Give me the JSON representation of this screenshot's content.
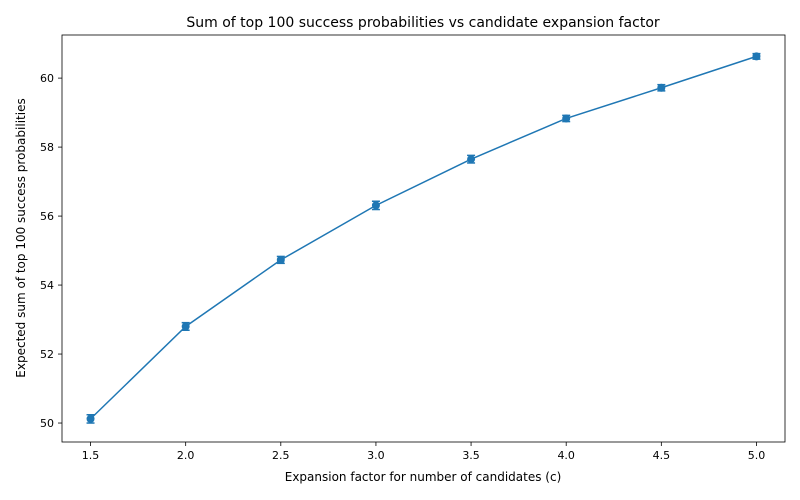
{
  "chart_data": {
    "type": "line",
    "title": "Sum of top 100 success probabilities vs candidate expansion factor",
    "xlabel": "Expansion factor for number of candidates (c)",
    "ylabel": "Expected sum of top 100 success probabilities",
    "xlim": [
      1.35,
      5.15
    ],
    "ylim": [
      49.45,
      61.25
    ],
    "xticks": [
      1.5,
      2.0,
      2.5,
      3.0,
      3.5,
      4.0,
      4.5,
      5.0
    ],
    "xtick_labels": [
      "1.5",
      "2.0",
      "2.5",
      "3.0",
      "3.5",
      "4.0",
      "4.5",
      "5.0"
    ],
    "yticks": [
      50,
      52,
      54,
      56,
      58,
      60
    ],
    "ytick_labels": [
      "50",
      "52",
      "54",
      "56",
      "58",
      "60"
    ],
    "grid": false,
    "series": [
      {
        "color": "#1f77b4",
        "x": [
          1.5,
          2.0,
          2.5,
          3.0,
          3.5,
          4.0,
          4.5,
          5.0
        ],
        "y": [
          50.12,
          52.8,
          54.73,
          56.31,
          57.65,
          58.83,
          59.72,
          60.63
        ],
        "yerr": [
          0.12,
          0.11,
          0.1,
          0.12,
          0.11,
          0.09,
          0.09,
          0.08
        ]
      }
    ]
  }
}
